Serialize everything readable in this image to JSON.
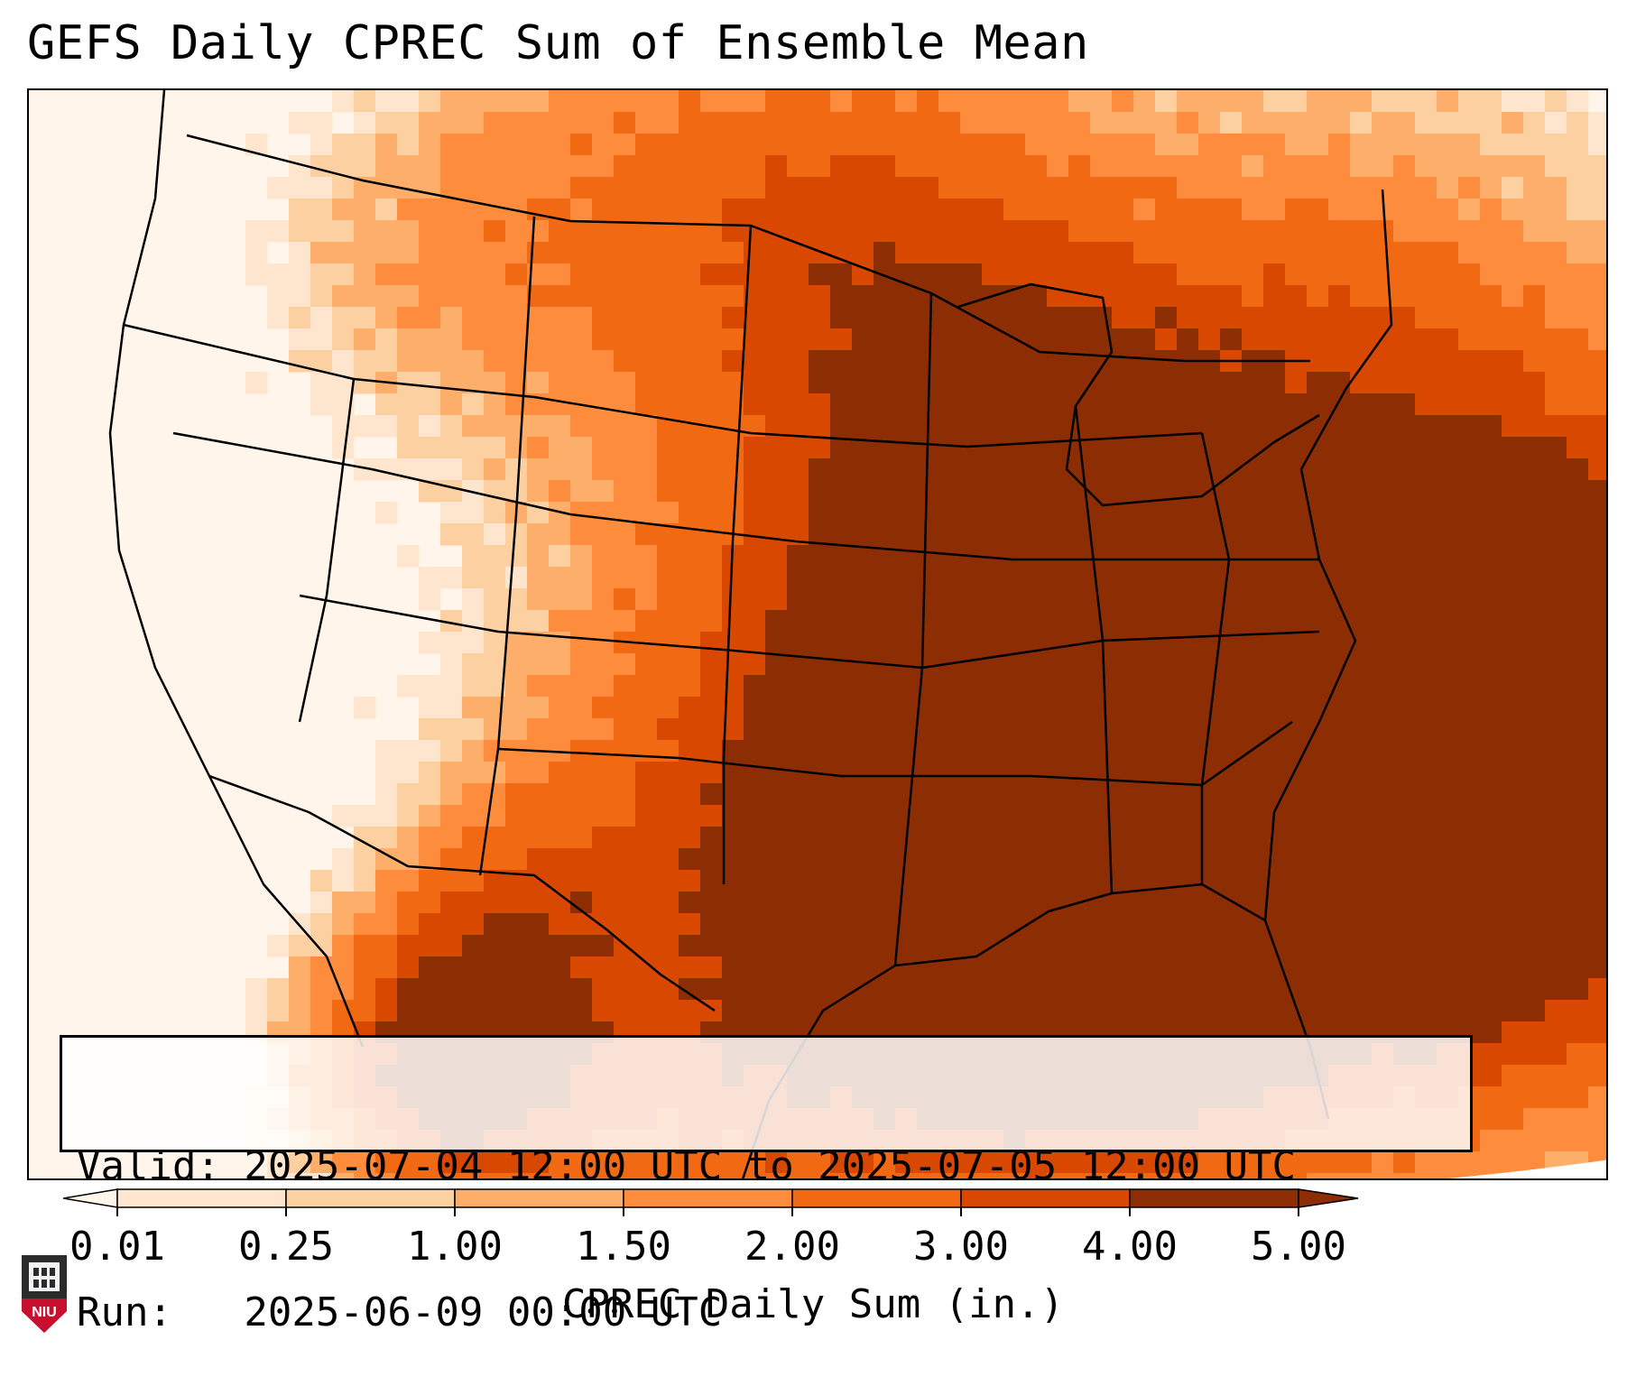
{
  "title": "GEFS Daily CPREC Sum of Ensemble Mean",
  "info": {
    "valid_line": "Valid: 2025-07-04 12:00 UTC to 2025-07-05 12:00 UTC",
    "run_line": "Run:   2025-06-09 00:00 UTC"
  },
  "colorbar": {
    "label": "CPREC Daily Sum (in.)",
    "ticks": [
      "0.01",
      "0.25",
      "1.00",
      "1.50",
      "2.00",
      "3.00",
      "4.00",
      "5.00"
    ],
    "colors": [
      "#fff5eb",
      "#fee6ce",
      "#fdd0a2",
      "#fdae6b",
      "#fd8d3c",
      "#f16913",
      "#d94801",
      "#8c2d04"
    ],
    "extend": "both"
  },
  "map": {
    "region": "Contiguous United States",
    "field": "CPREC daily sum of ensemble mean",
    "coastline_color": "#000000",
    "heaviest_regions": [
      "Southeast United States",
      "Western Atlantic off the Carolinas",
      "Sierra Madre Occidental, Mexico"
    ],
    "driest_regions": [
      "Pacific Northwest",
      "California",
      "Great Basin"
    ]
  },
  "logo": {
    "name": "niu-logo",
    "text": "NIU",
    "color": "#c8102e"
  }
}
